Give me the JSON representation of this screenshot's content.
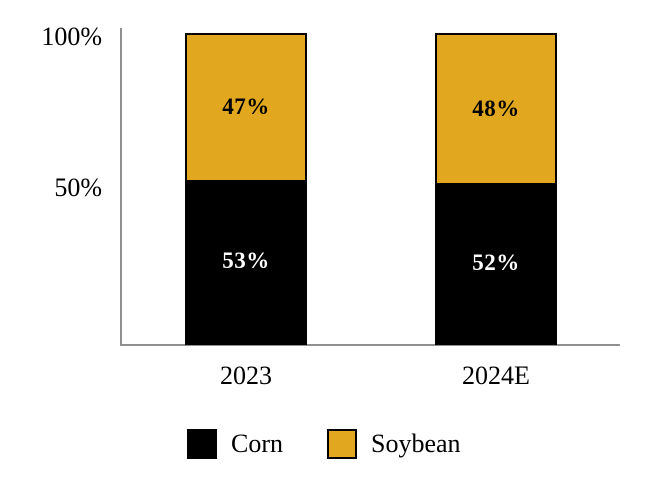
{
  "chart_data": {
    "type": "bar",
    "stacked": true,
    "orientation": "vertical",
    "categories": [
      "2023",
      "2024E"
    ],
    "series": [
      {
        "name": "Corn",
        "color": "#000000",
        "values": [
          53,
          52
        ],
        "labels": [
          "53%",
          "52%"
        ],
        "label_color": "#FFFFFF"
      },
      {
        "name": "Soybean",
        "color": "#E1A71E",
        "values": [
          47,
          48
        ],
        "labels": [
          "47%",
          "48%"
        ],
        "label_color": "#000000"
      }
    ],
    "y_ticks": [
      "100%",
      "50%"
    ],
    "ylim": [
      0,
      100
    ],
    "grid": false,
    "legend_position": "bottom",
    "axis_color": "#909090",
    "title": ""
  }
}
